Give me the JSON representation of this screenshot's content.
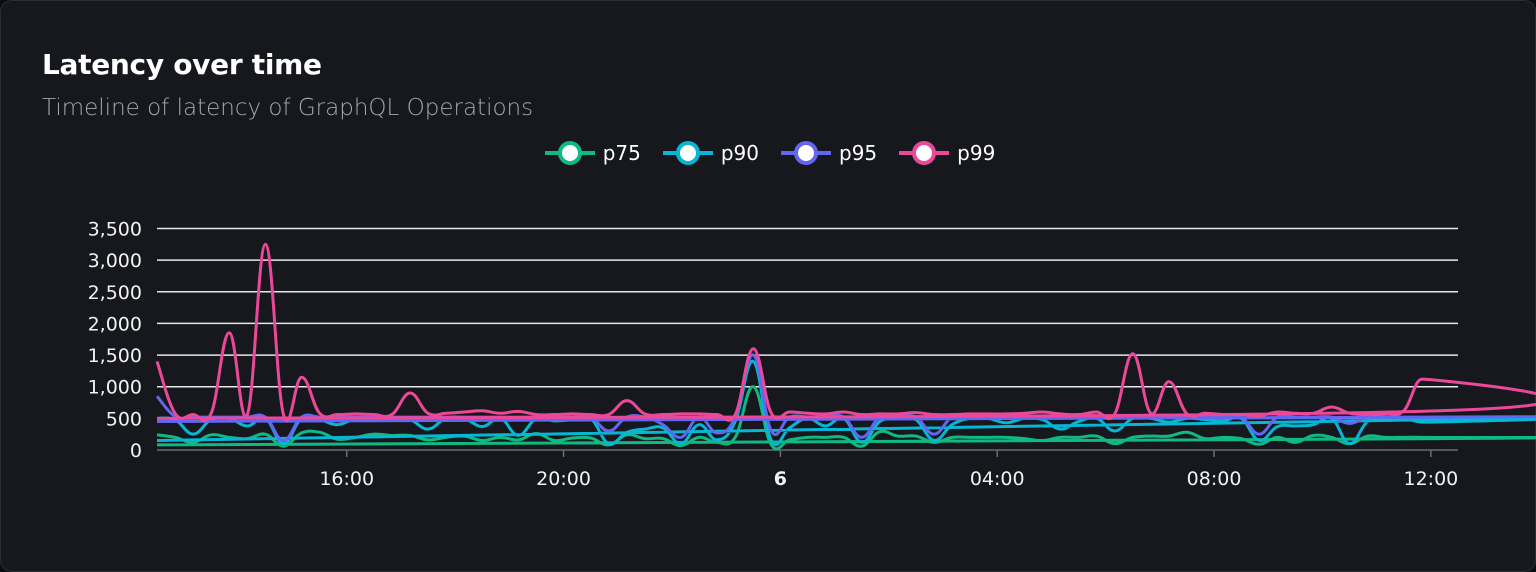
{
  "header": {
    "title": "Latency over time",
    "subtitle": "Timeline of latency of GraphQL Operations"
  },
  "chart_data": {
    "type": "line",
    "title": "Latency over time",
    "subtitle": "Timeline of latency of GraphQL Operations",
    "xlabel": "",
    "ylabel": "",
    "ylim": [
      0,
      3500
    ],
    "yticks": [
      "0",
      "500",
      "1,000",
      "1,500",
      "2,000",
      "2,500",
      "3,000",
      "3,500"
    ],
    "ytick_values": [
      0,
      500,
      1000,
      1500,
      2000,
      2500,
      3000,
      3500
    ],
    "xticks": [
      {
        "label": "16:00",
        "time": "16:00",
        "bold": false
      },
      {
        "label": "20:00",
        "time": "20:00",
        "bold": false
      },
      {
        "label": "6",
        "time": "00:00",
        "bold": true
      },
      {
        "label": "04:00",
        "time": "04:00",
        "bold": false
      },
      {
        "label": "08:00",
        "time": "08:00",
        "bold": false
      },
      {
        "label": "12:00",
        "time": "12:00",
        "bold": false
      }
    ],
    "grid": true,
    "legend_position": "top-center",
    "x": [
      "12:30",
      "12:50",
      "13:10",
      "13:30",
      "13:50",
      "14:10",
      "14:30",
      "14:50",
      "15:10",
      "15:30",
      "15:50",
      "16:10",
      "16:30",
      "16:50",
      "17:10",
      "17:30",
      "17:50",
      "18:10",
      "18:30",
      "18:50",
      "19:10",
      "19:30",
      "19:50",
      "20:10",
      "20:30",
      "20:50",
      "21:10",
      "21:30",
      "21:50",
      "22:10",
      "22:30",
      "22:50",
      "23:10",
      "23:30",
      "23:50",
      "00:10",
      "00:30",
      "00:50",
      "01:10",
      "01:30",
      "01:50",
      "02:10",
      "02:30",
      "02:50",
      "03:10",
      "03:30",
      "03:50",
      "04:10",
      "04:30",
      "04:50",
      "05:10",
      "05:30",
      "05:50",
      "06:10",
      "06:30",
      "06:50",
      "07:10",
      "07:30",
      "07:50",
      "08:10",
      "08:30",
      "08:50",
      "09:10",
      "09:30",
      "09:50",
      "10:10",
      "10:30",
      "10:50",
      "11:10",
      "11:30",
      "11:50",
      "12:10",
      "12:30"
    ],
    "series": [
      {
        "name": "p75",
        "color": "#10b981",
        "values": [
          240,
          200,
          120,
          240,
          200,
          180,
          250,
          60,
          270,
          280,
          170,
          200,
          250,
          230,
          230,
          160,
          200,
          220,
          150,
          200,
          160,
          260,
          150,
          190,
          190,
          80,
          240,
          180,
          180,
          70,
          200,
          120,
          200,
          1000,
          80,
          160,
          200,
          200,
          200,
          60,
          290,
          220,
          220,
          120,
          200,
          200,
          200,
          200,
          180,
          150,
          200,
          200,
          220,
          100,
          200,
          220,
          220,
          280,
          180,
          200,
          180,
          90,
          200,
          120,
          230,
          200,
          100,
          220,
          200,
          200,
          200,
          180,
          80
        ]
      },
      {
        "name": "p90",
        "color": "#06b6d4",
        "values": [
          500,
          480,
          250,
          480,
          500,
          380,
          500,
          100,
          500,
          480,
          400,
          500,
          500,
          500,
          480,
          330,
          500,
          500,
          370,
          500,
          230,
          500,
          460,
          480,
          500,
          100,
          280,
          330,
          350,
          100,
          400,
          160,
          450,
          1400,
          150,
          350,
          500,
          380,
          500,
          120,
          450,
          500,
          480,
          150,
          400,
          500,
          500,
          430,
          500,
          480,
          330,
          450,
          500,
          300,
          500,
          500,
          440,
          500,
          480,
          460,
          500,
          150,
          370,
          380,
          400,
          500,
          100,
          450,
          500,
          500,
          440,
          480,
          150
        ]
      },
      {
        "name": "p95",
        "color": "#6366f1",
        "values": [
          850,
          530,
          520,
          520,
          520,
          520,
          520,
          150,
          520,
          520,
          520,
          520,
          520,
          520,
          520,
          520,
          520,
          520,
          520,
          520,
          520,
          520,
          520,
          520,
          520,
          300,
          520,
          520,
          400,
          200,
          520,
          270,
          520,
          1500,
          300,
          520,
          520,
          520,
          520,
          200,
          520,
          520,
          520,
          250,
          520,
          520,
          520,
          520,
          520,
          520,
          520,
          520,
          520,
          520,
          520,
          520,
          520,
          520,
          520,
          520,
          520,
          250,
          520,
          520,
          520,
          520,
          420,
          520,
          520,
          520,
          520,
          520,
          450
        ]
      },
      {
        "name": "p99",
        "color": "#ec4899",
        "values": [
          1400,
          580,
          560,
          580,
          1850,
          560,
          3250,
          560,
          1150,
          580,
          560,
          570,
          560,
          560,
          900,
          580,
          580,
          600,
          620,
          580,
          610,
          560,
          560,
          570,
          560,
          560,
          780,
          570,
          560,
          570,
          570,
          560,
          560,
          1600,
          580,
          600,
          580,
          570,
          600,
          560,
          570,
          570,
          590,
          560,
          560,
          570,
          570,
          570,
          580,
          600,
          570,
          560,
          600,
          570,
          1520,
          580,
          1080,
          570,
          580,
          560,
          560,
          540,
          600,
          580,
          580,
          680,
          580,
          560,
          570,
          620,
          1120,
          620,
          500
        ]
      }
    ]
  },
  "colors": {
    "background": "#16181d",
    "grid": "#e5e7eb",
    "axis": "#6b6e75"
  }
}
